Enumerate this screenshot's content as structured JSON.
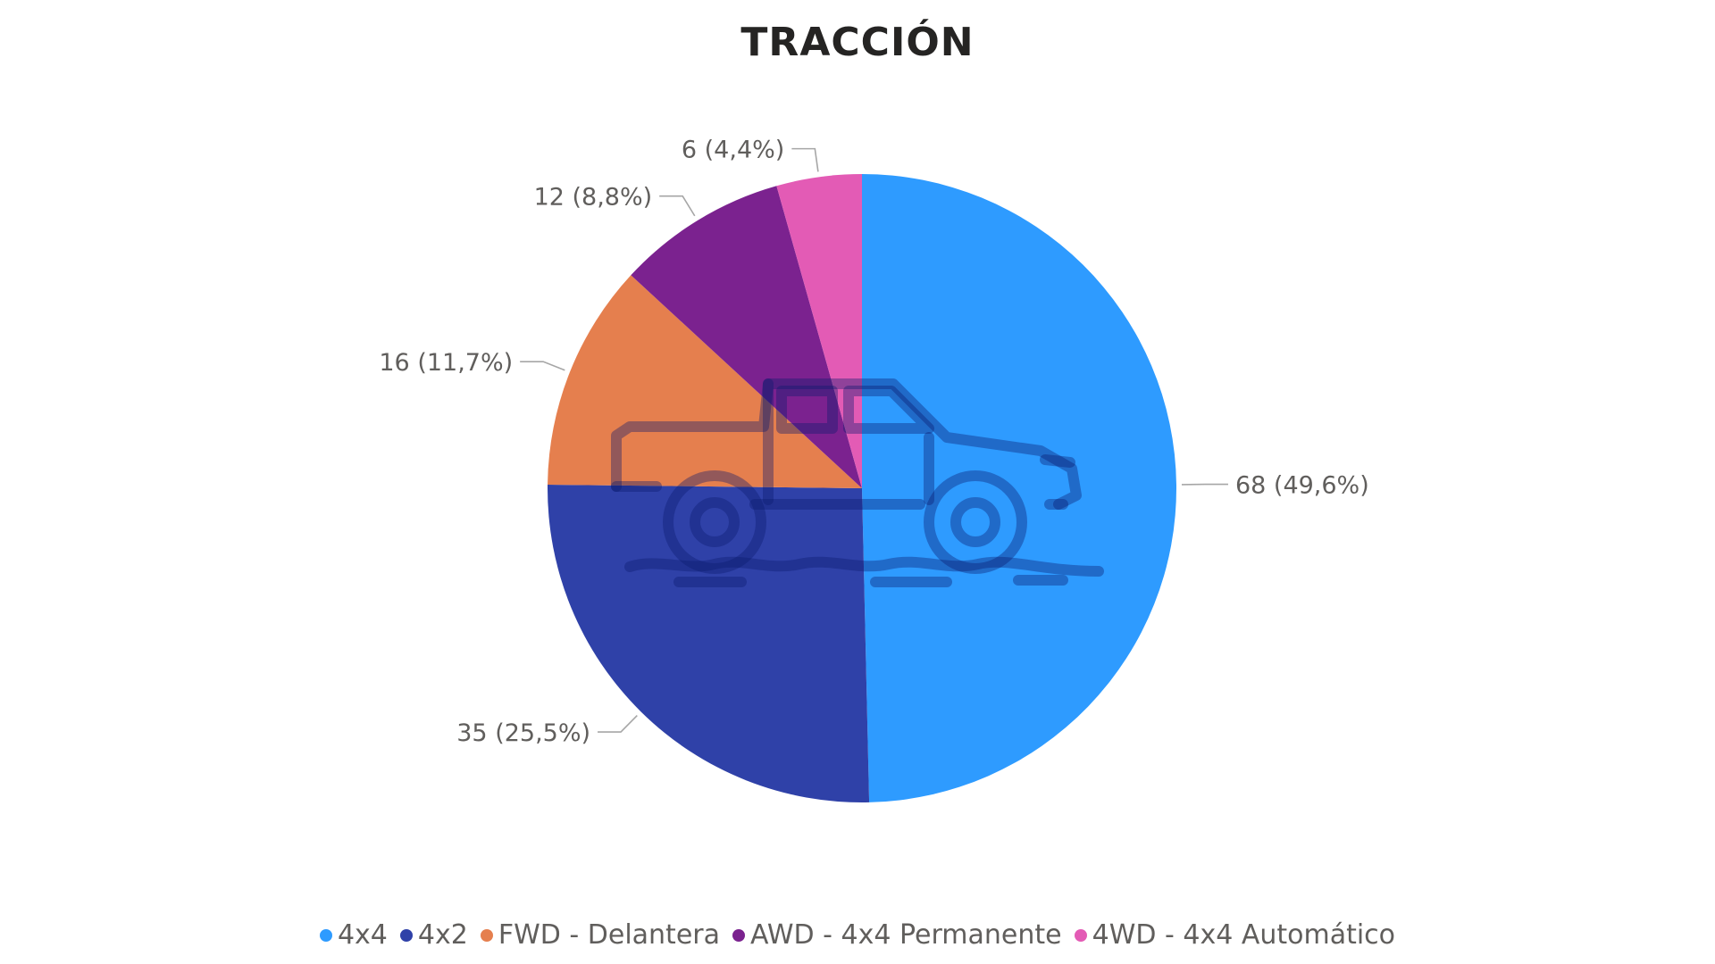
{
  "chart_data": {
    "type": "pie",
    "title": "TRACCIÓN",
    "categories": [
      "4x4",
      "4x2",
      "FWD - Delantera",
      "AWD - 4x4 Permanente",
      "4WD - 4x4 Automático"
    ],
    "values": [
      68,
      35,
      16,
      12,
      6
    ],
    "percent_labels": [
      "68 (49,6%)",
      "35 (25,5%)",
      "16 (11,7%)",
      "12 (8,8%)",
      "6 (4,4%)"
    ],
    "colors": [
      "#2e9bff",
      "#2f41a8",
      "#e57f4e",
      "#7b228f",
      "#e35bb5"
    ],
    "legend_position": "bottom-center",
    "watermark_icon": "pickup-truck-icon"
  }
}
